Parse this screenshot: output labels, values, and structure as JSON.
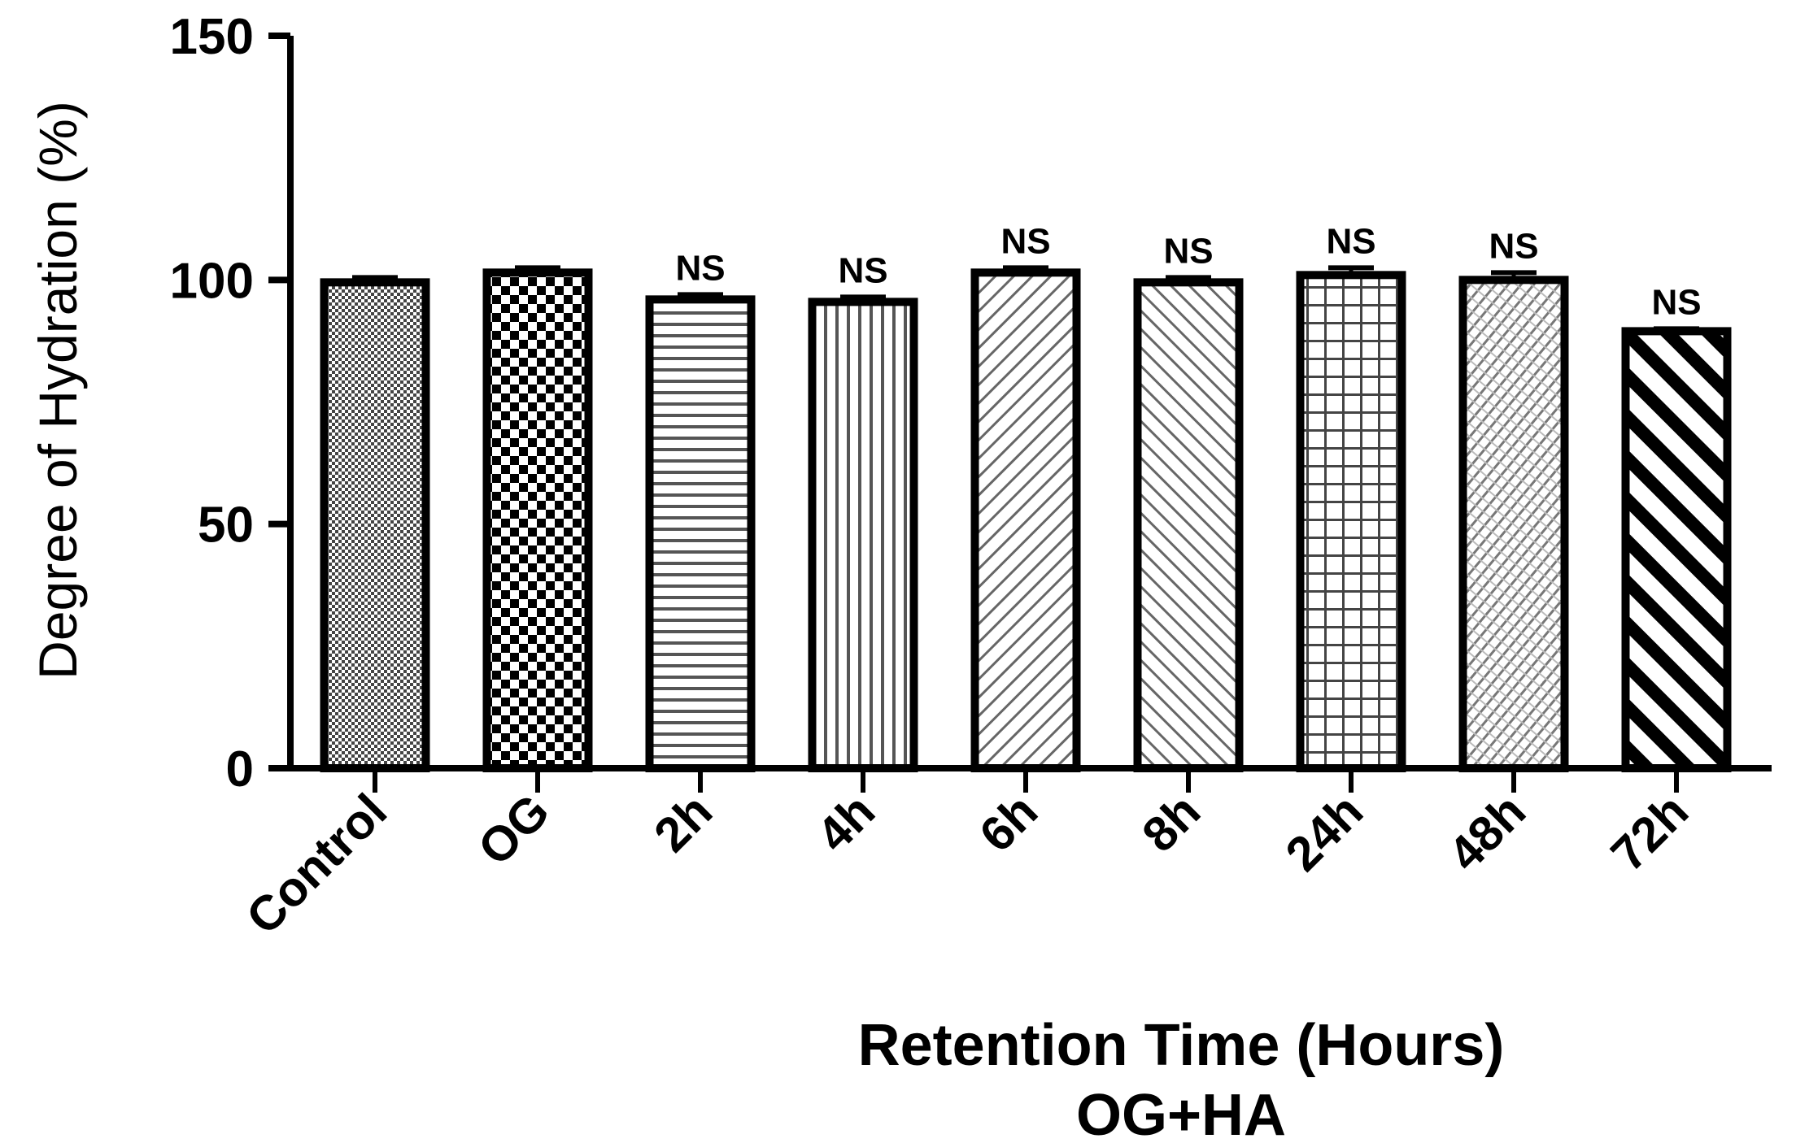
{
  "chart_data": {
    "type": "bar",
    "categories": [
      "Control",
      "OG",
      "2h",
      "4h",
      "6h",
      "8h",
      "24h",
      "48h",
      "72h"
    ],
    "values": [
      99.5,
      101.5,
      96,
      95.5,
      101.5,
      99.5,
      101,
      100,
      89.5
    ],
    "errors": [
      1,
      1,
      1,
      1,
      1,
      1,
      1.5,
      1.5,
      0.5
    ],
    "annotations": [
      "",
      "",
      "NS",
      "NS",
      "NS",
      "NS",
      "NS",
      "NS",
      "NS"
    ],
    "patterns": [
      "fine-check",
      "checker",
      "horizontal-lines",
      "vertical-lines",
      "diagonal-up-fine",
      "diagonal-down-fine",
      "grid",
      "diagonal-up-mixed",
      "diagonal-down-bold"
    ],
    "ylabel": "Degree of Hydration (%)",
    "xlabel": "Retention Time (Hours)",
    "xlabel_sub": "OG+HA",
    "ylim": [
      0,
      150
    ],
    "yticks": [
      0,
      50,
      100,
      150
    ],
    "grid": false,
    "legend": "none"
  }
}
